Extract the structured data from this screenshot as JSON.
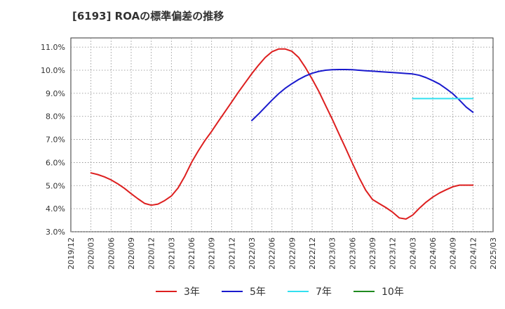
{
  "title": "[6193]  ROAの標準偏差の推移",
  "chart_data": {
    "type": "line",
    "title": "[6193]  ROAの標準偏差の推移",
    "xlabel": "",
    "ylabel": "",
    "x_ticks": [
      "2019/12",
      "2020/03",
      "2020/06",
      "2020/09",
      "2020/12",
      "2021/03",
      "2021/06",
      "2021/09",
      "2021/12",
      "2022/03",
      "2022/06",
      "2022/09",
      "2022/12",
      "2023/03",
      "2023/06",
      "2023/09",
      "2023/12",
      "2024/03",
      "2024/06",
      "2024/09",
      "2024/12",
      "2025/03"
    ],
    "y_ticks": [
      "3.0%",
      "4.0%",
      "5.0%",
      "6.0%",
      "7.0%",
      "8.0%",
      "9.0%",
      "10.0%",
      "11.0%"
    ],
    "ylim": [
      3.0,
      11.4
    ],
    "grid": true,
    "legend_position": "bottom",
    "series": [
      {
        "name": "3年",
        "color": "#dd1f1f",
        "x": [
          "2020/03",
          "2020/04",
          "2020/05",
          "2020/06",
          "2020/07",
          "2020/08",
          "2020/09",
          "2020/10",
          "2020/11",
          "2020/12",
          "2021/01",
          "2021/02",
          "2021/03",
          "2021/04",
          "2021/05",
          "2021/06",
          "2021/07",
          "2021/08",
          "2021/09",
          "2021/10",
          "2021/11",
          "2021/12",
          "2022/01",
          "2022/02",
          "2022/03",
          "2022/04",
          "2022/05",
          "2022/06",
          "2022/07",
          "2022/08",
          "2022/09",
          "2022/10",
          "2022/11",
          "2022/12",
          "2023/01",
          "2023/02",
          "2023/03",
          "2023/04",
          "2023/05",
          "2023/06",
          "2023/07",
          "2023/08",
          "2023/09",
          "2023/10",
          "2023/11",
          "2023/12",
          "2024/01",
          "2024/02",
          "2024/03",
          "2024/04",
          "2024/05",
          "2024/06",
          "2024/07",
          "2024/08",
          "2024/09",
          "2024/10",
          "2024/11",
          "2024/12"
        ],
        "values": [
          5.55,
          5.48,
          5.38,
          5.25,
          5.08,
          4.88,
          4.65,
          4.43,
          4.23,
          4.15,
          4.2,
          4.35,
          4.55,
          4.9,
          5.4,
          6.0,
          6.5,
          6.95,
          7.35,
          7.78,
          8.2,
          8.62,
          9.05,
          9.45,
          9.85,
          10.22,
          10.55,
          10.8,
          10.92,
          10.92,
          10.82,
          10.55,
          10.12,
          9.62,
          9.08,
          8.48,
          7.88,
          7.25,
          6.62,
          5.98,
          5.35,
          4.8,
          4.4,
          4.22,
          4.05,
          3.85,
          3.6,
          3.55,
          3.72,
          4.02,
          4.28,
          4.5,
          4.68,
          4.82,
          4.95,
          5.02,
          5.02,
          5.02
        ]
      },
      {
        "name": "5年",
        "color": "#1a1acd",
        "x": [
          "2022/03",
          "2022/04",
          "2022/05",
          "2022/06",
          "2022/07",
          "2022/08",
          "2022/09",
          "2022/10",
          "2022/11",
          "2022/12",
          "2023/01",
          "2023/02",
          "2023/03",
          "2023/04",
          "2023/05",
          "2023/06",
          "2023/07",
          "2023/08",
          "2023/09",
          "2023/10",
          "2023/11",
          "2023/12",
          "2024/01",
          "2024/02",
          "2024/03",
          "2024/04",
          "2024/05",
          "2024/06",
          "2024/07",
          "2024/08",
          "2024/09",
          "2024/10",
          "2024/11",
          "2024/12"
        ],
        "values": [
          7.82,
          8.1,
          8.4,
          8.7,
          8.98,
          9.22,
          9.42,
          9.6,
          9.75,
          9.87,
          9.95,
          10.0,
          10.02,
          10.03,
          10.03,
          10.02,
          10.0,
          9.98,
          9.96,
          9.94,
          9.92,
          9.9,
          9.88,
          9.86,
          9.84,
          9.78,
          9.68,
          9.55,
          9.4,
          9.2,
          8.98,
          8.7,
          8.4,
          8.18
        ]
      },
      {
        "name": "7年",
        "color": "#33e0f0",
        "x": [
          "2024/03",
          "2024/06",
          "2024/09",
          "2024/12"
        ],
        "values": [
          8.77,
          8.77,
          8.77,
          8.77
        ]
      },
      {
        "name": "10年",
        "color": "#208a20",
        "x": [],
        "values": []
      }
    ]
  }
}
